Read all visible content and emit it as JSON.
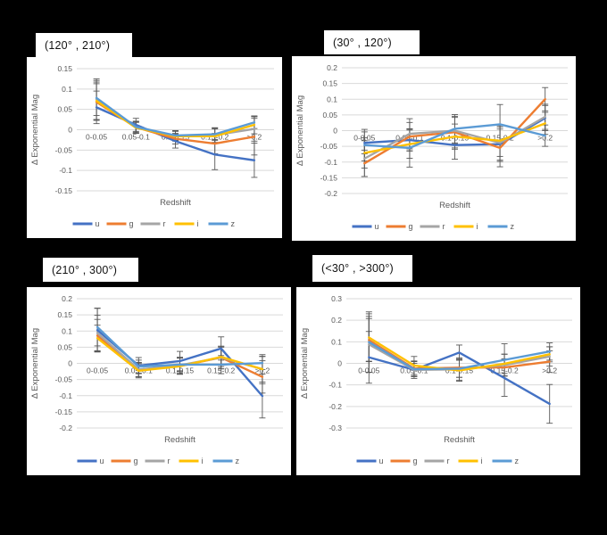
{
  "figure": {
    "background": "#000000",
    "panel_background": "#ffffff",
    "grid_color": "#D9D9D9",
    "axis_text_color": "#595959",
    "error_bar_color": "#595959",
    "title_text_color": "#111111"
  },
  "palette": {
    "u": "#4472C4",
    "g": "#ED7D31",
    "r": "#A5A5A5",
    "i": "#FFC000",
    "z": "#5B9BD5"
  },
  "chart_data": [
    {
      "panel_title": "(120° , 210°)",
      "type": "line",
      "xlabel": "Redshift",
      "ylabel": "Δ Exponential Mag",
      "ylim": [
        -0.15,
        0.15
      ],
      "ytick_step": 0.05,
      "grid": true,
      "legend_position": "bottom",
      "categories": [
        "0-0.05",
        "0.05-0.1",
        "0.1-0.15",
        "0.15-0.2",
        ">0.2"
      ],
      "series": [
        {
          "name": "u",
          "values": [
            0.055,
            0.012,
            -0.028,
            -0.061,
            -0.075
          ],
          "errors": [
            0.04,
            0.016,
            0.017,
            0.037,
            0.042
          ]
        },
        {
          "name": "g",
          "values": [
            0.068,
            0.006,
            -0.022,
            -0.034,
            -0.017
          ],
          "errors": [
            0.045,
            0.015,
            0.013,
            0.025,
            0.045
          ]
        },
        {
          "name": "r",
          "values": [
            0.075,
            0.005,
            -0.015,
            -0.013,
            0.002
          ],
          "errors": [
            0.05,
            0.014,
            0.012,
            0.018,
            0.03
          ]
        },
        {
          "name": "i",
          "values": [
            0.071,
            0.005,
            -0.016,
            -0.016,
            0.012
          ],
          "errors": [
            0.046,
            0.013,
            0.012,
            0.018,
            0.022
          ]
        },
        {
          "name": "z",
          "values": [
            0.078,
            0.007,
            -0.014,
            -0.011,
            0.018
          ],
          "errors": [
            0.043,
            0.013,
            0.012,
            0.015,
            0.015
          ]
        }
      ]
    },
    {
      "panel_title": "(30° , 120°)",
      "type": "line",
      "xlabel": "Redshift",
      "ylabel": "Δ Exponential Mag",
      "ylim": [
        -0.2,
        0.2
      ],
      "ytick_step": 0.05,
      "grid": true,
      "legend_position": "bottom",
      "categories": [
        "0-0.05",
        "0.05-0.1",
        "0.1-0.15",
        "0.15-0.2",
        ">0.2"
      ],
      "series": [
        {
          "name": "u",
          "values": [
            -0.039,
            -0.03,
            -0.046,
            -0.043,
            0.04
          ],
          "errors": [
            0.035,
            0.035,
            0.045,
            0.055,
            0.04
          ]
        },
        {
          "name": "g",
          "values": [
            -0.104,
            -0.019,
            -0.005,
            -0.055,
            0.1
          ],
          "errors": [
            0.042,
            0.045,
            0.05,
            0.06,
            0.037
          ]
        },
        {
          "name": "r",
          "values": [
            -0.089,
            -0.01,
            0.0,
            -0.039,
            0.044
          ],
          "errors": [
            0.057,
            0.048,
            0.042,
            0.055,
            0.04
          ]
        },
        {
          "name": "i",
          "values": [
            -0.071,
            -0.043,
            -0.019,
            -0.032,
            0.023
          ],
          "errors": [
            0.048,
            0.045,
            0.04,
            0.05,
            0.035
          ]
        },
        {
          "name": "z",
          "values": [
            -0.046,
            -0.055,
            0.006,
            0.02,
            -0.016
          ],
          "errors": [
            0.05,
            0.061,
            0.045,
            0.063,
            0.034
          ]
        }
      ]
    },
    {
      "panel_title": "(210° , 300°)",
      "type": "line",
      "xlabel": "Redshift",
      "ylabel": "Δ Exponential Mag",
      "ylim": [
        -0.2,
        0.2
      ],
      "ytick_step": 0.05,
      "grid": true,
      "legend_position": "bottom",
      "categories": [
        "0-0.05",
        "0.05-0.1",
        "0.1-0.15",
        "0.15-0.2",
        ">0.2"
      ],
      "series": [
        {
          "name": "u",
          "values": [
            0.103,
            -0.007,
            0.007,
            0.046,
            -0.101
          ],
          "errors": [
            0.068,
            0.025,
            0.03,
            0.036,
            0.068
          ]
        },
        {
          "name": "g",
          "values": [
            0.086,
            -0.02,
            -0.008,
            0.018,
            -0.042
          ],
          "errors": [
            0.05,
            0.022,
            0.025,
            0.035,
            0.05
          ]
        },
        {
          "name": "r",
          "values": [
            0.094,
            -0.019,
            -0.006,
            0.018,
            -0.018
          ],
          "errors": [
            0.055,
            0.022,
            0.025,
            0.035,
            0.045
          ]
        },
        {
          "name": "i",
          "values": [
            0.078,
            -0.023,
            -0.009,
            0.02,
            -0.018
          ],
          "errors": [
            0.04,
            0.022,
            0.025,
            0.03,
            0.04
          ]
        },
        {
          "name": "z",
          "values": [
            0.112,
            -0.01,
            -0.004,
            -0.004,
            0.001
          ],
          "errors": [
            0.058,
            0.02,
            0.022,
            0.028,
            0.02
          ]
        }
      ]
    },
    {
      "panel_title": "(<30° , >300°)",
      "type": "line",
      "xlabel": "Redshift",
      "ylabel": "Δ Exponential Mag",
      "ylim": [
        -0.3,
        0.3
      ],
      "ytick_step": 0.1,
      "grid": true,
      "legend_position": "bottom",
      "categories": [
        "0-0.05",
        "0.05-0.1",
        "0.1-0.15",
        "0.15-0.2",
        ">0.2"
      ],
      "series": [
        {
          "name": "u",
          "values": [
            0.028,
            -0.03,
            0.05,
            -0.068,
            -0.188
          ],
          "errors": [
            0.12,
            0.03,
            0.035,
            0.085,
            0.09
          ]
        },
        {
          "name": "g",
          "values": [
            0.108,
            -0.024,
            -0.02,
            -0.019,
            0.008
          ],
          "errors": [
            0.1,
            0.035,
            0.045,
            0.04,
            0.05
          ]
        },
        {
          "name": "r",
          "values": [
            0.088,
            -0.03,
            -0.028,
            -0.008,
            0.032
          ],
          "errors": [
            0.13,
            0.04,
            0.05,
            0.05,
            0.045
          ]
        },
        {
          "name": "i",
          "values": [
            0.12,
            -0.01,
            -0.033,
            -0.002,
            0.042
          ],
          "errors": [
            0.11,
            0.042,
            0.05,
            0.045,
            0.035
          ]
        },
        {
          "name": "z",
          "values": [
            0.099,
            -0.027,
            -0.025,
            0.016,
            0.055
          ],
          "errors": [
            0.14,
            0.035,
            0.04,
            0.075,
            0.04
          ]
        }
      ]
    }
  ]
}
